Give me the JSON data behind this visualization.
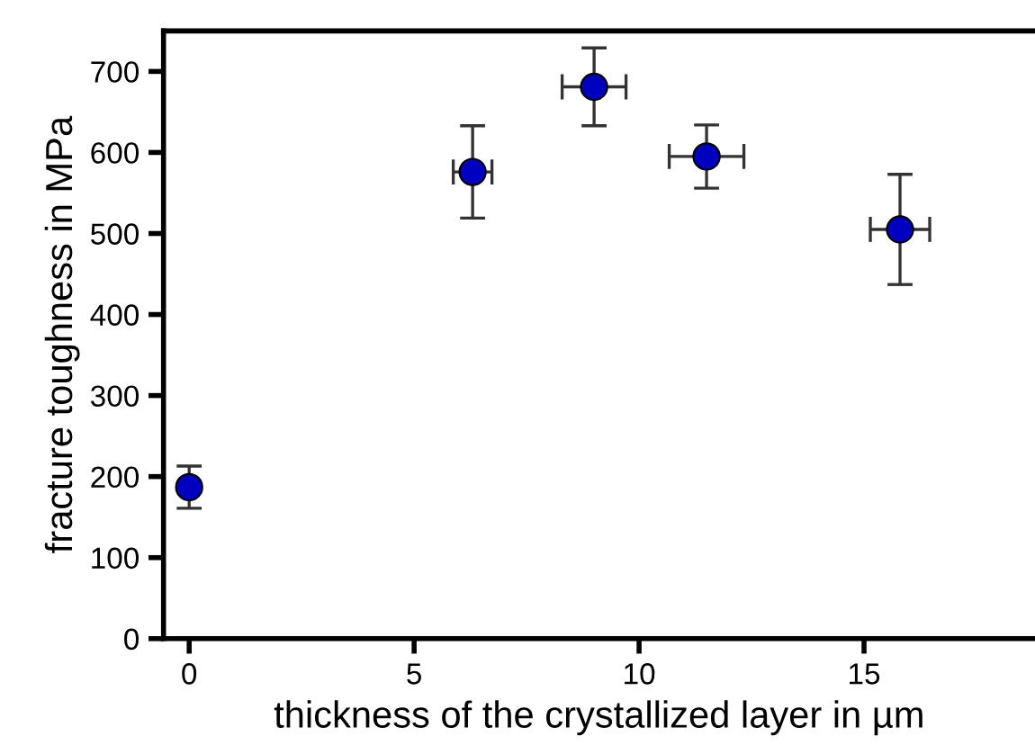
{
  "chart_data": {
    "type": "scatter",
    "xlabel": "thickness of the crystallized layer in µm",
    "ylabel": "fracture toughness in MPa",
    "x": [
      0,
      6.3,
      9.0,
      11.5,
      15.8
    ],
    "values": [
      187,
      576,
      681,
      595,
      505
    ],
    "errors": [
      26,
      57,
      48,
      39,
      68
    ],
    "xerrors": [
      null,
      0.43,
      0.71,
      0.83,
      0.66
    ],
    "color": "#0000c0",
    "marker": "circle",
    "xlim": [
      -0.57,
      18.8
    ],
    "ylim": [
      0,
      750
    ],
    "xticks": [
      0,
      5,
      10,
      15
    ],
    "yticks": [
      0,
      100,
      200,
      300,
      400,
      500,
      600,
      700
    ],
    "grid": false
  }
}
